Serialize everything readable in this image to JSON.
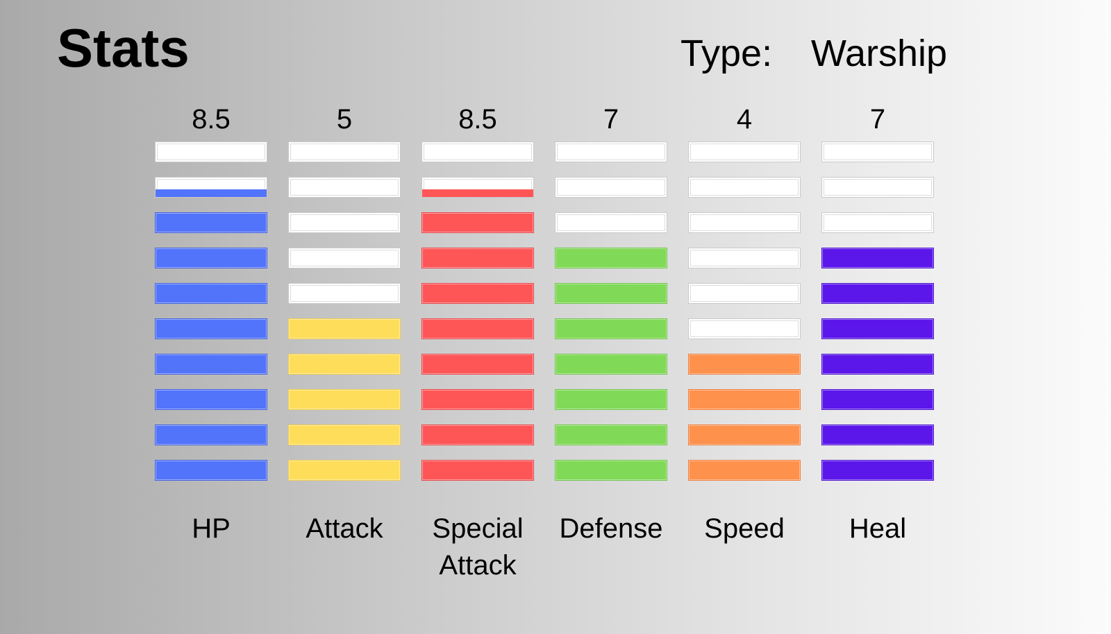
{
  "header": {
    "title": "Stats",
    "type_label": "Type:",
    "type_value": "Warship"
  },
  "chart_data": {
    "type": "bar",
    "max_segments": 10,
    "categories": [
      "HP",
      "Attack",
      "Special\nAttack",
      "Defense",
      "Speed",
      "Heal"
    ],
    "values": [
      8.5,
      5,
      8.5,
      7,
      4,
      7
    ],
    "value_labels": [
      "8.5",
      "5",
      "8.5",
      "7",
      "4",
      "7"
    ],
    "colors": [
      "#5274fb",
      "#fedd5a",
      "#fe5657",
      "#80d957",
      "#fe914b",
      "#5b16ea"
    ],
    "border_colors": [
      "#3f5fe0",
      "#f2cc4a",
      "#e94448",
      "#6cc646",
      "#f07d3a",
      "#4a0fd0"
    ]
  }
}
